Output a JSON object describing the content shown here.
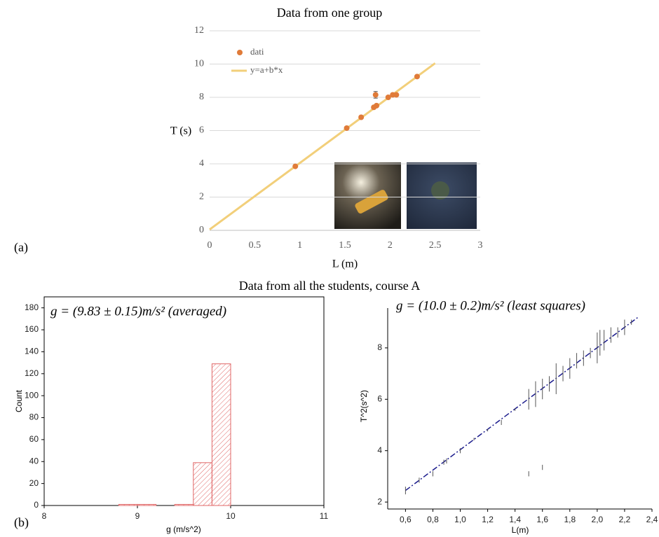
{
  "heading": "Data from all the students, course A",
  "panel_labels": [
    "(a)",
    "(b)"
  ],
  "chart_data": [
    {
      "type": "scatter",
      "title": "Data from one group",
      "x_label": "L (m)",
      "y_label": "T (s)",
      "xlim": [
        0,
        3
      ],
      "xticks": [
        0,
        0.5,
        1,
        1.5,
        2,
        2.5,
        3
      ],
      "ylim": [
        0,
        12
      ],
      "yticks": [
        0,
        2,
        4,
        6,
        8,
        10,
        12
      ],
      "grid": true,
      "series": [
        {
          "name": "dati",
          "type": "scatter",
          "color": "#e07b39",
          "x": [
            0.95,
            1.52,
            1.68,
            1.82,
            1.84,
            1.85,
            1.98,
            2.03,
            2.07,
            2.3
          ],
          "values": [
            3.85,
            6.15,
            6.8,
            7.4,
            8.15,
            7.5,
            8.0,
            8.15,
            8.15,
            9.25
          ],
          "errors": [
            null,
            null,
            null,
            null,
            0.2,
            null,
            null,
            null,
            null,
            null
          ]
        },
        {
          "name": "y=a+b*x",
          "type": "line",
          "color": "#f2cf7a",
          "x": [
            0,
            2.5
          ],
          "values": [
            0.05,
            10.05
          ]
        }
      ]
    },
    {
      "type": "histogram",
      "title": "g = (9.83 ± 0.15)m/s² (averaged)",
      "x_label": "g (m/s^2)",
      "y_label": "Count",
      "bins": [
        8.8,
        9.0,
        9.2,
        9.4,
        9.6,
        9.8,
        10.0
      ],
      "values": [
        1,
        1,
        0,
        1,
        39,
        129
      ],
      "color": "#e06666",
      "xlim": [
        8,
        11
      ],
      "xticks": [
        8,
        9,
        10,
        11
      ],
      "ylim": [
        0,
        190
      ],
      "yticks": [
        0,
        20,
        40,
        60,
        80,
        100,
        120,
        140,
        160,
        180
      ]
    },
    {
      "type": "scatter",
      "title": "g = (10.0 ± 0.2)m/s² (least squares)",
      "x_label": "L(m)",
      "y_label": "T^2(s^2)",
      "xlim": [
        0.47,
        2.4
      ],
      "xticks": [
        {
          "value": 0.6,
          "label": "0,6"
        },
        {
          "value": 0.8,
          "label": "0,8"
        },
        {
          "value": 1.0,
          "label": "1,0"
        },
        {
          "value": 1.2,
          "label": "1,2"
        },
        {
          "value": 1.4,
          "label": "1,4"
        },
        {
          "value": 1.6,
          "label": "1,6"
        },
        {
          "value": 1.8,
          "label": "1,8"
        },
        {
          "value": 2.0,
          "label": "2,0"
        },
        {
          "value": 2.2,
          "label": "2,2"
        },
        {
          "value": 2.4,
          "label": "2,4"
        }
      ],
      "ylim": [
        1.73,
        9.55
      ],
      "yticks": [
        2,
        4,
        6,
        8
      ],
      "series": [
        {
          "type": "errorbar",
          "color": "#555555",
          "x": [
            0.6,
            0.7,
            0.8,
            0.88,
            0.9,
            1.0,
            1.1,
            1.2,
            1.3,
            1.4,
            1.5,
            1.5,
            1.55,
            1.6,
            1.6,
            1.65,
            1.7,
            1.75,
            1.8,
            1.85,
            1.9,
            1.95,
            2.0,
            2.02,
            2.05,
            2.1,
            2.15,
            2.2,
            2.25
          ],
          "values": [
            2.45,
            2.85,
            3.1,
            3.55,
            3.6,
            4.0,
            4.45,
            4.8,
            5.1,
            5.6,
            3.1,
            6.0,
            6.2,
            3.35,
            6.4,
            6.6,
            6.8,
            7.0,
            7.2,
            7.5,
            7.6,
            7.8,
            8.0,
            8.2,
            8.3,
            8.5,
            8.6,
            8.8,
            9.0
          ],
          "errors": [
            0.15,
            0.1,
            0.1,
            0.1,
            0.1,
            0.1,
            0.05,
            0.05,
            0.1,
            0.05,
            0.1,
            0.4,
            0.5,
            0.1,
            0.4,
            0.3,
            0.6,
            0.3,
            0.4,
            0.3,
            0.3,
            0.2,
            0.6,
            0.5,
            0.4,
            0.3,
            0.2,
            0.3,
            0.1
          ]
        },
        {
          "type": "line",
          "color": "#1a1a8c",
          "x": [
            0.6,
            2.3
          ],
          "values": [
            2.45,
            9.2
          ]
        }
      ]
    }
  ]
}
